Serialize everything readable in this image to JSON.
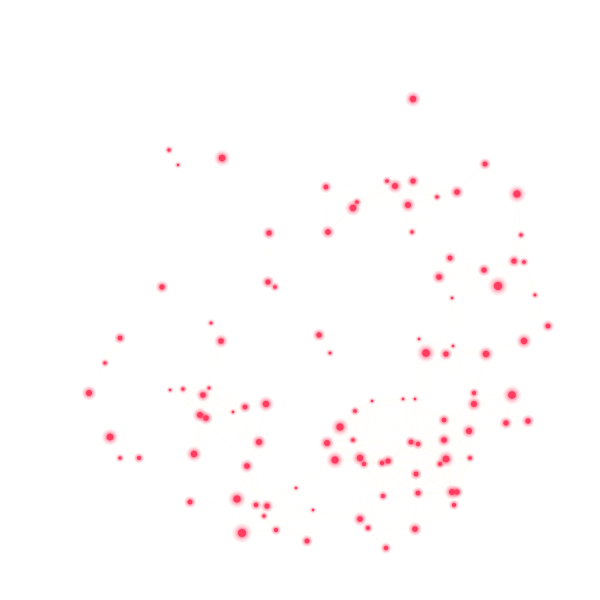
{
  "scene": {
    "description_visible_text": "",
    "background": "#ffffff",
    "particle_color": "#ff3b5f",
    "halo_color": "#ff8aa0",
    "faint_line_color": "#fffbf0"
  }
}
